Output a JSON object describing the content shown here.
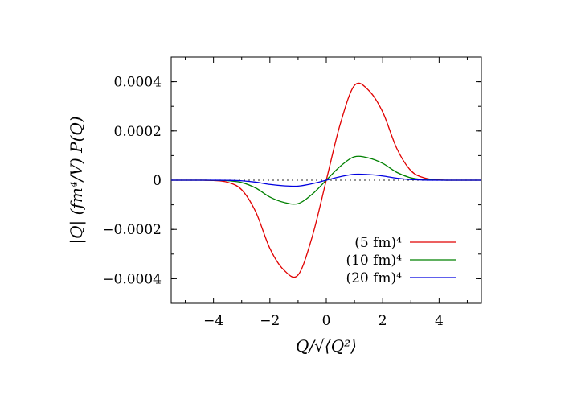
{
  "chart_data": {
    "type": "line",
    "xlabel": "Q/√⟨Q²⟩",
    "ylabel": "|Q| (fm⁴/V) P(Q)",
    "xlim": [
      -5.5,
      5.5
    ],
    "ylim": [
      -0.0005,
      0.0005
    ],
    "xticks": [
      -4,
      -2,
      0,
      2,
      4
    ],
    "xtick_labels": [
      "−4",
      "−2",
      "0",
      "2",
      "4"
    ],
    "yticks": [
      0.0004,
      0.0002,
      0,
      -0.0002,
      -0.0004
    ],
    "ytick_labels": [
      "0.0004",
      "0.0002",
      "0",
      "−0.0002",
      "−0.0004"
    ],
    "grid": false,
    "legend_position": "bottom-right",
    "x": [
      -5.5,
      -5.0,
      -4.5,
      -4.0,
      -3.5,
      -3.0,
      -2.5,
      -2.0,
      -1.5,
      -1.0,
      -0.5,
      0.0,
      0.5,
      1.0,
      1.5,
      2.0,
      2.5,
      3.0,
      3.5,
      4.0,
      4.5,
      5.0,
      5.5
    ],
    "series": [
      {
        "name": "(5 fm)⁴",
        "color": "#e00000",
        "values": [
          0,
          0,
          0,
          -1.3e-06,
          -8.4e-06,
          -3.88e-05,
          -0.0001291,
          -0.0002771,
          -0.0003653,
          -0.000385,
          -0.00023,
          0,
          0.00023,
          0.000385,
          0.0003653,
          0.0002771,
          0.0001291,
          3.88e-05,
          8.4e-06,
          1.3e-06,
          0,
          0,
          0
        ]
      },
      {
        "name": "(10 fm)⁴",
        "color": "#008000",
        "values": [
          0,
          0,
          0,
          -3e-07,
          -2e-06,
          -9.6e-06,
          -3.19e-05,
          -6.84e-05,
          -9.02e-05,
          -9.5e-05,
          -5.68e-05,
          0,
          5.68e-05,
          9.5e-05,
          9.02e-05,
          6.84e-05,
          3.19e-05,
          9.6e-06,
          2e-06,
          3e-07,
          0,
          0,
          0
        ]
      },
      {
        "name": "(20 fm)⁴",
        "color": "#0000e0",
        "values": [
          0,
          0,
          0,
          -1e-07,
          -5e-07,
          -2.4e-06,
          -8e-06,
          -1.73e-05,
          -2.28e-05,
          -2.4e-05,
          -1.43e-05,
          0,
          1.43e-05,
          2.4e-05,
          2.28e-05,
          1.73e-05,
          8e-06,
          2.4e-06,
          5e-07,
          1e-07,
          0,
          0,
          0
        ]
      }
    ],
    "zero_line": {
      "style": "dotted",
      "color": "#555555"
    }
  }
}
